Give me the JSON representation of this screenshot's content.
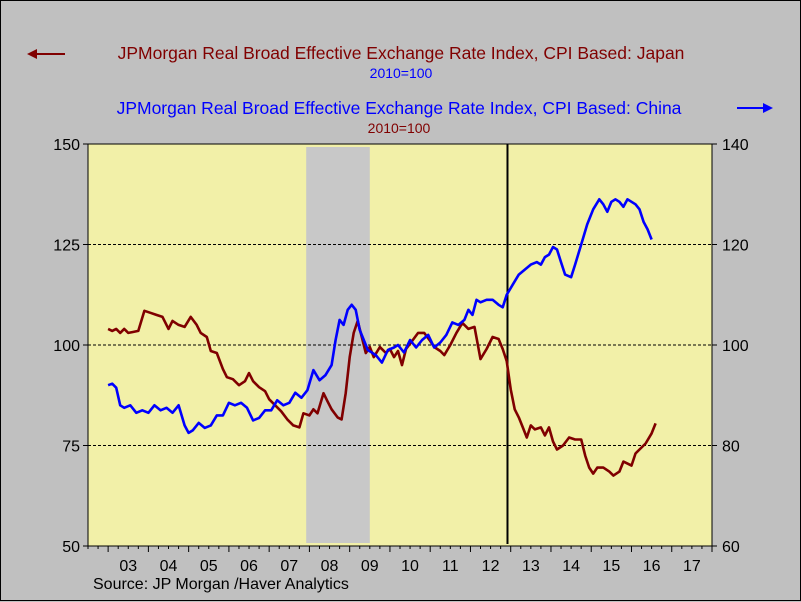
{
  "legend": {
    "japan": {
      "label": "JPMorgan Real Broad Effective Exchange Rate Index, CPI Based: Japan",
      "sublabel": "2010=100",
      "color": "#800000",
      "axis": "left"
    },
    "china": {
      "label": "JPMorgan Real Broad Effective Exchange Rate Index, CPI Based: China",
      "sublabel": "2010=100",
      "color": "#0000ff",
      "axis": "right"
    }
  },
  "source": "Source:  JP Morgan /Haver Analytics",
  "chart_data": {
    "type": "line",
    "x_unit": "year (decimal)",
    "xlim": [
      2002.5,
      2018.0
    ],
    "x_tick_labels": [
      "03",
      "04",
      "05",
      "06",
      "07",
      "08",
      "09",
      "10",
      "11",
      "12",
      "13",
      "14",
      "15",
      "16",
      "17"
    ],
    "left_axis": {
      "ylim": [
        50,
        150
      ],
      "ticks": [
        "50",
        "75",
        "100",
        "125",
        "150"
      ]
    },
    "right_axis": {
      "ylim": [
        60,
        140
      ],
      "ticks": [
        "60",
        "80",
        "100",
        "120",
        "140"
      ]
    },
    "gridlines_left": [
      75,
      100,
      125
    ],
    "background_color": "#f2f0a8",
    "recession_band": {
      "x_start": 2007.92,
      "x_end": 2009.5,
      "color": "#c8c8c8"
    },
    "vertical_marker": {
      "x": 2012.92,
      "color": "#000000"
    },
    "series": [
      {
        "name": "JPMorgan Real Broad Effective Exchange Rate Index, CPI Based: Japan",
        "axis": "left",
        "color": "#800000",
        "points": [
          [
            2003.0,
            104
          ],
          [
            2003.1,
            103.5
          ],
          [
            2003.2,
            104
          ],
          [
            2003.3,
            103
          ],
          [
            2003.4,
            104
          ],
          [
            2003.5,
            103
          ],
          [
            2003.6,
            103.2
          ],
          [
            2003.75,
            103.5
          ],
          [
            2003.9,
            108.5
          ],
          [
            2004.05,
            108
          ],
          [
            2004.2,
            107.5
          ],
          [
            2004.35,
            107
          ],
          [
            2004.5,
            104
          ],
          [
            2004.6,
            106
          ],
          [
            2004.75,
            105
          ],
          [
            2004.9,
            104.5
          ],
          [
            2005.05,
            107
          ],
          [
            2005.2,
            105
          ],
          [
            2005.3,
            103
          ],
          [
            2005.45,
            102
          ],
          [
            2005.55,
            98.5
          ],
          [
            2005.7,
            98
          ],
          [
            2005.85,
            94
          ],
          [
            2005.95,
            92
          ],
          [
            2006.1,
            91.5
          ],
          [
            2006.25,
            90
          ],
          [
            2006.4,
            91
          ],
          [
            2006.5,
            93
          ],
          [
            2006.6,
            91
          ],
          [
            2006.75,
            89.5
          ],
          [
            2006.9,
            88.5
          ],
          [
            2007.0,
            86.5
          ],
          [
            2007.15,
            85
          ],
          [
            2007.3,
            83.5
          ],
          [
            2007.45,
            81.5
          ],
          [
            2007.6,
            80
          ],
          [
            2007.75,
            79.5
          ],
          [
            2007.85,
            83
          ],
          [
            2008.0,
            82.5
          ],
          [
            2008.1,
            84
          ],
          [
            2008.2,
            83
          ],
          [
            2008.35,
            88
          ],
          [
            2008.45,
            86
          ],
          [
            2008.55,
            84
          ],
          [
            2008.7,
            82
          ],
          [
            2008.8,
            81.5
          ],
          [
            2008.9,
            88
          ],
          [
            2009.0,
            97
          ],
          [
            2009.1,
            103
          ],
          [
            2009.2,
            106
          ],
          [
            2009.3,
            102
          ],
          [
            2009.4,
            98
          ],
          [
            2009.5,
            99.5
          ],
          [
            2009.6,
            97
          ],
          [
            2009.75,
            99.5
          ],
          [
            2009.9,
            98
          ],
          [
            2010.0,
            99
          ],
          [
            2010.1,
            97
          ],
          [
            2010.2,
            98.5
          ],
          [
            2010.3,
            95
          ],
          [
            2010.4,
            99
          ],
          [
            2010.55,
            101
          ],
          [
            2010.7,
            103
          ],
          [
            2010.85,
            103
          ],
          [
            2011.0,
            101
          ],
          [
            2011.1,
            99.5
          ],
          [
            2011.25,
            98.5
          ],
          [
            2011.35,
            97.5
          ],
          [
            2011.5,
            100
          ],
          [
            2011.65,
            103
          ],
          [
            2011.8,
            105.5
          ],
          [
            2011.95,
            104
          ],
          [
            2012.1,
            104.5
          ],
          [
            2012.25,
            96.5
          ],
          [
            2012.4,
            99
          ],
          [
            2012.55,
            102
          ],
          [
            2012.7,
            101.5
          ],
          [
            2012.8,
            99
          ],
          [
            2012.9,
            96
          ],
          [
            2013.0,
            89
          ],
          [
            2013.1,
            84
          ],
          [
            2013.2,
            82
          ],
          [
            2013.3,
            79.5
          ],
          [
            2013.4,
            77
          ],
          [
            2013.5,
            80
          ],
          [
            2013.6,
            79
          ],
          [
            2013.75,
            79.5
          ],
          [
            2013.85,
            77.5
          ],
          [
            2013.95,
            79.5
          ],
          [
            2014.05,
            76
          ],
          [
            2014.15,
            74
          ],
          [
            2014.3,
            75
          ],
          [
            2014.45,
            77
          ],
          [
            2014.6,
            76.5
          ],
          [
            2014.75,
            76.5
          ],
          [
            2014.85,
            72.5
          ],
          [
            2014.95,
            69.5
          ],
          [
            2015.05,
            68
          ],
          [
            2015.15,
            69.5
          ],
          [
            2015.3,
            69.5
          ],
          [
            2015.45,
            68.5
          ],
          [
            2015.55,
            67.5
          ],
          [
            2015.7,
            68.5
          ],
          [
            2015.8,
            71
          ],
          [
            2015.9,
            70.5
          ],
          [
            2016.0,
            70
          ],
          [
            2016.1,
            73
          ],
          [
            2016.2,
            74
          ],
          [
            2016.35,
            75.5
          ],
          [
            2016.5,
            78
          ],
          [
            2016.6,
            80.5
          ]
        ]
      },
      {
        "name": "JPMorgan Real Broad Effective Exchange Rate Index, CPI Based: China",
        "axis": "right",
        "color": "#0000ff",
        "points": [
          [
            2003.0,
            92
          ],
          [
            2003.1,
            92.3
          ],
          [
            2003.2,
            91.5
          ],
          [
            2003.3,
            88
          ],
          [
            2003.4,
            87.5
          ],
          [
            2003.55,
            88
          ],
          [
            2003.7,
            86.5
          ],
          [
            2003.85,
            87
          ],
          [
            2004.0,
            86.5
          ],
          [
            2004.15,
            88
          ],
          [
            2004.3,
            87
          ],
          [
            2004.45,
            87.5
          ],
          [
            2004.6,
            86.5
          ],
          [
            2004.75,
            88
          ],
          [
            2004.9,
            84
          ],
          [
            2005.0,
            82.5
          ],
          [
            2005.1,
            83
          ],
          [
            2005.25,
            84.5
          ],
          [
            2005.4,
            83.5
          ],
          [
            2005.55,
            84
          ],
          [
            2005.7,
            86
          ],
          [
            2005.85,
            86
          ],
          [
            2006.0,
            88.5
          ],
          [
            2006.15,
            88
          ],
          [
            2006.3,
            88.5
          ],
          [
            2006.45,
            87.5
          ],
          [
            2006.6,
            85
          ],
          [
            2006.75,
            85.5
          ],
          [
            2006.9,
            87
          ],
          [
            2007.05,
            87
          ],
          [
            2007.2,
            89
          ],
          [
            2007.35,
            88
          ],
          [
            2007.5,
            88.5
          ],
          [
            2007.65,
            90.5
          ],
          [
            2007.8,
            89.5
          ],
          [
            2007.95,
            91
          ],
          [
            2008.1,
            95
          ],
          [
            2008.25,
            93
          ],
          [
            2008.4,
            94
          ],
          [
            2008.55,
            96
          ],
          [
            2008.65,
            101
          ],
          [
            2008.75,
            105
          ],
          [
            2008.85,
            104
          ],
          [
            2008.95,
            107
          ],
          [
            2009.05,
            108
          ],
          [
            2009.15,
            107
          ],
          [
            2009.25,
            103
          ],
          [
            2009.35,
            101
          ],
          [
            2009.45,
            99
          ],
          [
            2009.55,
            98.5
          ],
          [
            2009.65,
            98
          ],
          [
            2009.8,
            96.5
          ],
          [
            2009.95,
            99
          ],
          [
            2010.1,
            99.5
          ],
          [
            2010.2,
            100
          ],
          [
            2010.35,
            98.5
          ],
          [
            2010.5,
            101
          ],
          [
            2010.65,
            99.5
          ],
          [
            2010.8,
            101
          ],
          [
            2010.95,
            102
          ],
          [
            2011.1,
            99.5
          ],
          [
            2011.25,
            100.5
          ],
          [
            2011.4,
            102
          ],
          [
            2011.55,
            104.5
          ],
          [
            2011.7,
            104
          ],
          [
            2011.85,
            105
          ],
          [
            2011.95,
            107
          ],
          [
            2012.05,
            106
          ],
          [
            2012.15,
            109
          ],
          [
            2012.25,
            108.5
          ],
          [
            2012.4,
            109
          ],
          [
            2012.55,
            109
          ],
          [
            2012.7,
            108
          ],
          [
            2012.8,
            107.5
          ],
          [
            2012.9,
            110
          ],
          [
            2013.05,
            112
          ],
          [
            2013.2,
            114
          ],
          [
            2013.35,
            115
          ],
          [
            2013.5,
            116
          ],
          [
            2013.65,
            116.5
          ],
          [
            2013.75,
            116
          ],
          [
            2013.85,
            117.5
          ],
          [
            2013.95,
            118
          ],
          [
            2014.05,
            119.5
          ],
          [
            2014.15,
            119
          ],
          [
            2014.25,
            116.5
          ],
          [
            2014.35,
            114
          ],
          [
            2014.5,
            113.5
          ],
          [
            2014.6,
            116
          ],
          [
            2014.75,
            120
          ],
          [
            2014.9,
            124
          ],
          [
            2015.05,
            127
          ],
          [
            2015.2,
            129
          ],
          [
            2015.3,
            128
          ],
          [
            2015.4,
            126.5
          ],
          [
            2015.5,
            128.5
          ],
          [
            2015.6,
            129
          ],
          [
            2015.7,
            128.5
          ],
          [
            2015.8,
            127.5
          ],
          [
            2015.9,
            129
          ],
          [
            2016.0,
            128.5
          ],
          [
            2016.1,
            128
          ],
          [
            2016.2,
            127
          ],
          [
            2016.3,
            124.5
          ],
          [
            2016.4,
            123
          ],
          [
            2016.5,
            121
          ]
        ]
      }
    ]
  }
}
